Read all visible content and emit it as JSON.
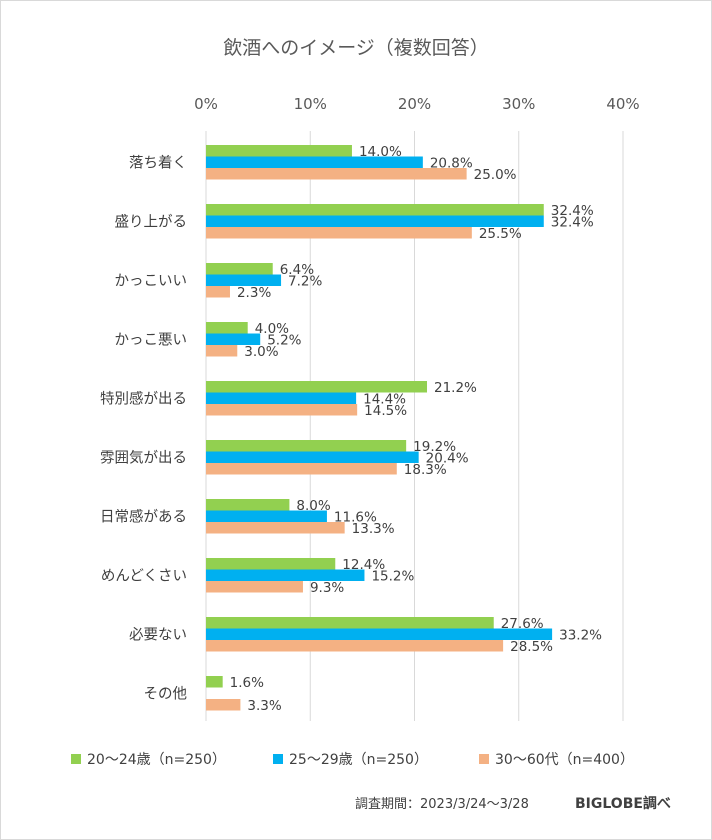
{
  "chart_data": {
    "type": "bar",
    "orientation": "horizontal",
    "title": "飲酒へのイメージ（複数回答）",
    "categories": [
      "落ち着く",
      "盛り上がる",
      "かっこいい",
      "かっこ悪い",
      "特別感が出る",
      "雰囲気が出る",
      "日常感がある",
      "めんどくさい",
      "必要ない",
      "その他"
    ],
    "series": [
      {
        "name": "20～24歳（n=250）",
        "color": "#92d050",
        "values": [
          14.0,
          32.4,
          6.4,
          4.0,
          21.2,
          19.2,
          8.0,
          12.4,
          27.6,
          1.6
        ],
        "labels": [
          "14.0%",
          "32.4%",
          "6.4%",
          "4.0%",
          "21.2%",
          "19.2%",
          "8.0%",
          "12.4%",
          "27.6%",
          "1.6%"
        ]
      },
      {
        "name": "25～29歳（n=250）",
        "color": "#00b0f0",
        "values": [
          20.8,
          32.4,
          7.2,
          5.2,
          14.4,
          20.4,
          11.6,
          15.2,
          33.2,
          null
        ],
        "labels": [
          "20.8%",
          "32.4%",
          "7.2%",
          "5.2%",
          "14.4%",
          "20.4%",
          "11.6%",
          "15.2%",
          "33.2%",
          null
        ]
      },
      {
        "name": "30～60代（n=400）",
        "color": "#f4b183",
        "values": [
          25.0,
          25.5,
          2.3,
          3.0,
          14.5,
          18.3,
          13.3,
          9.3,
          28.5,
          3.3
        ],
        "labels": [
          "25.0%",
          "25.5%",
          "2.3%",
          "3.0%",
          "14.5%",
          "18.3%",
          "13.3%",
          "9.3%",
          "28.5%",
          "3.3%"
        ]
      }
    ],
    "xlim": [
      0,
      40
    ],
    "xticks": [
      0,
      10,
      20,
      30,
      40
    ],
    "xtick_labels": [
      "0%",
      "10%",
      "20%",
      "30%",
      "40%"
    ],
    "grid": true,
    "xaxis_position": "top",
    "legend_position": "bottom"
  },
  "footer": {
    "survey_period": "調査期間：2023/3/24～3/28",
    "brand": "BIGLOBE調べ"
  }
}
